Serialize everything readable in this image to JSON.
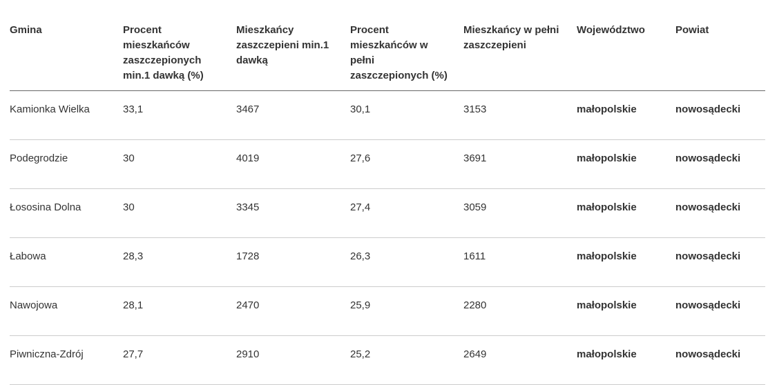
{
  "table": {
    "columns": [
      "Gmina",
      "Procent mieszkańców zaszczepionych min.1 dawką (%)",
      "Mieszkańcy zaszczepieni min.1 dawką",
      "Procent mieszkańców w pełni zaszczepionych (%)",
      "Mieszkańcy w pełni zaszczepieni",
      "Województwo",
      "Powiat"
    ],
    "rows": [
      [
        "Kamionka Wielka",
        "33,1",
        "3467",
        "30,1",
        "3153",
        "małopolskie",
        "nowosądecki"
      ],
      [
        "Podegrodzie",
        "30",
        "4019",
        "27,6",
        "3691",
        "małopolskie",
        "nowosądecki"
      ],
      [
        "Łososina Dolna",
        "30",
        "3345",
        "27,4",
        "3059",
        "małopolskie",
        "nowosądecki"
      ],
      [
        "Łabowa",
        "28,3",
        "1728",
        "26,3",
        "1611",
        "małopolskie",
        "nowosądecki"
      ],
      [
        "Nawojowa",
        "28,1",
        "2470",
        "25,9",
        "2280",
        "małopolskie",
        "nowosądecki"
      ],
      [
        "Piwniczna-Zdrój",
        "27,7",
        "2910",
        "25,2",
        "2649",
        "małopolskie",
        "nowosądecki"
      ]
    ]
  }
}
